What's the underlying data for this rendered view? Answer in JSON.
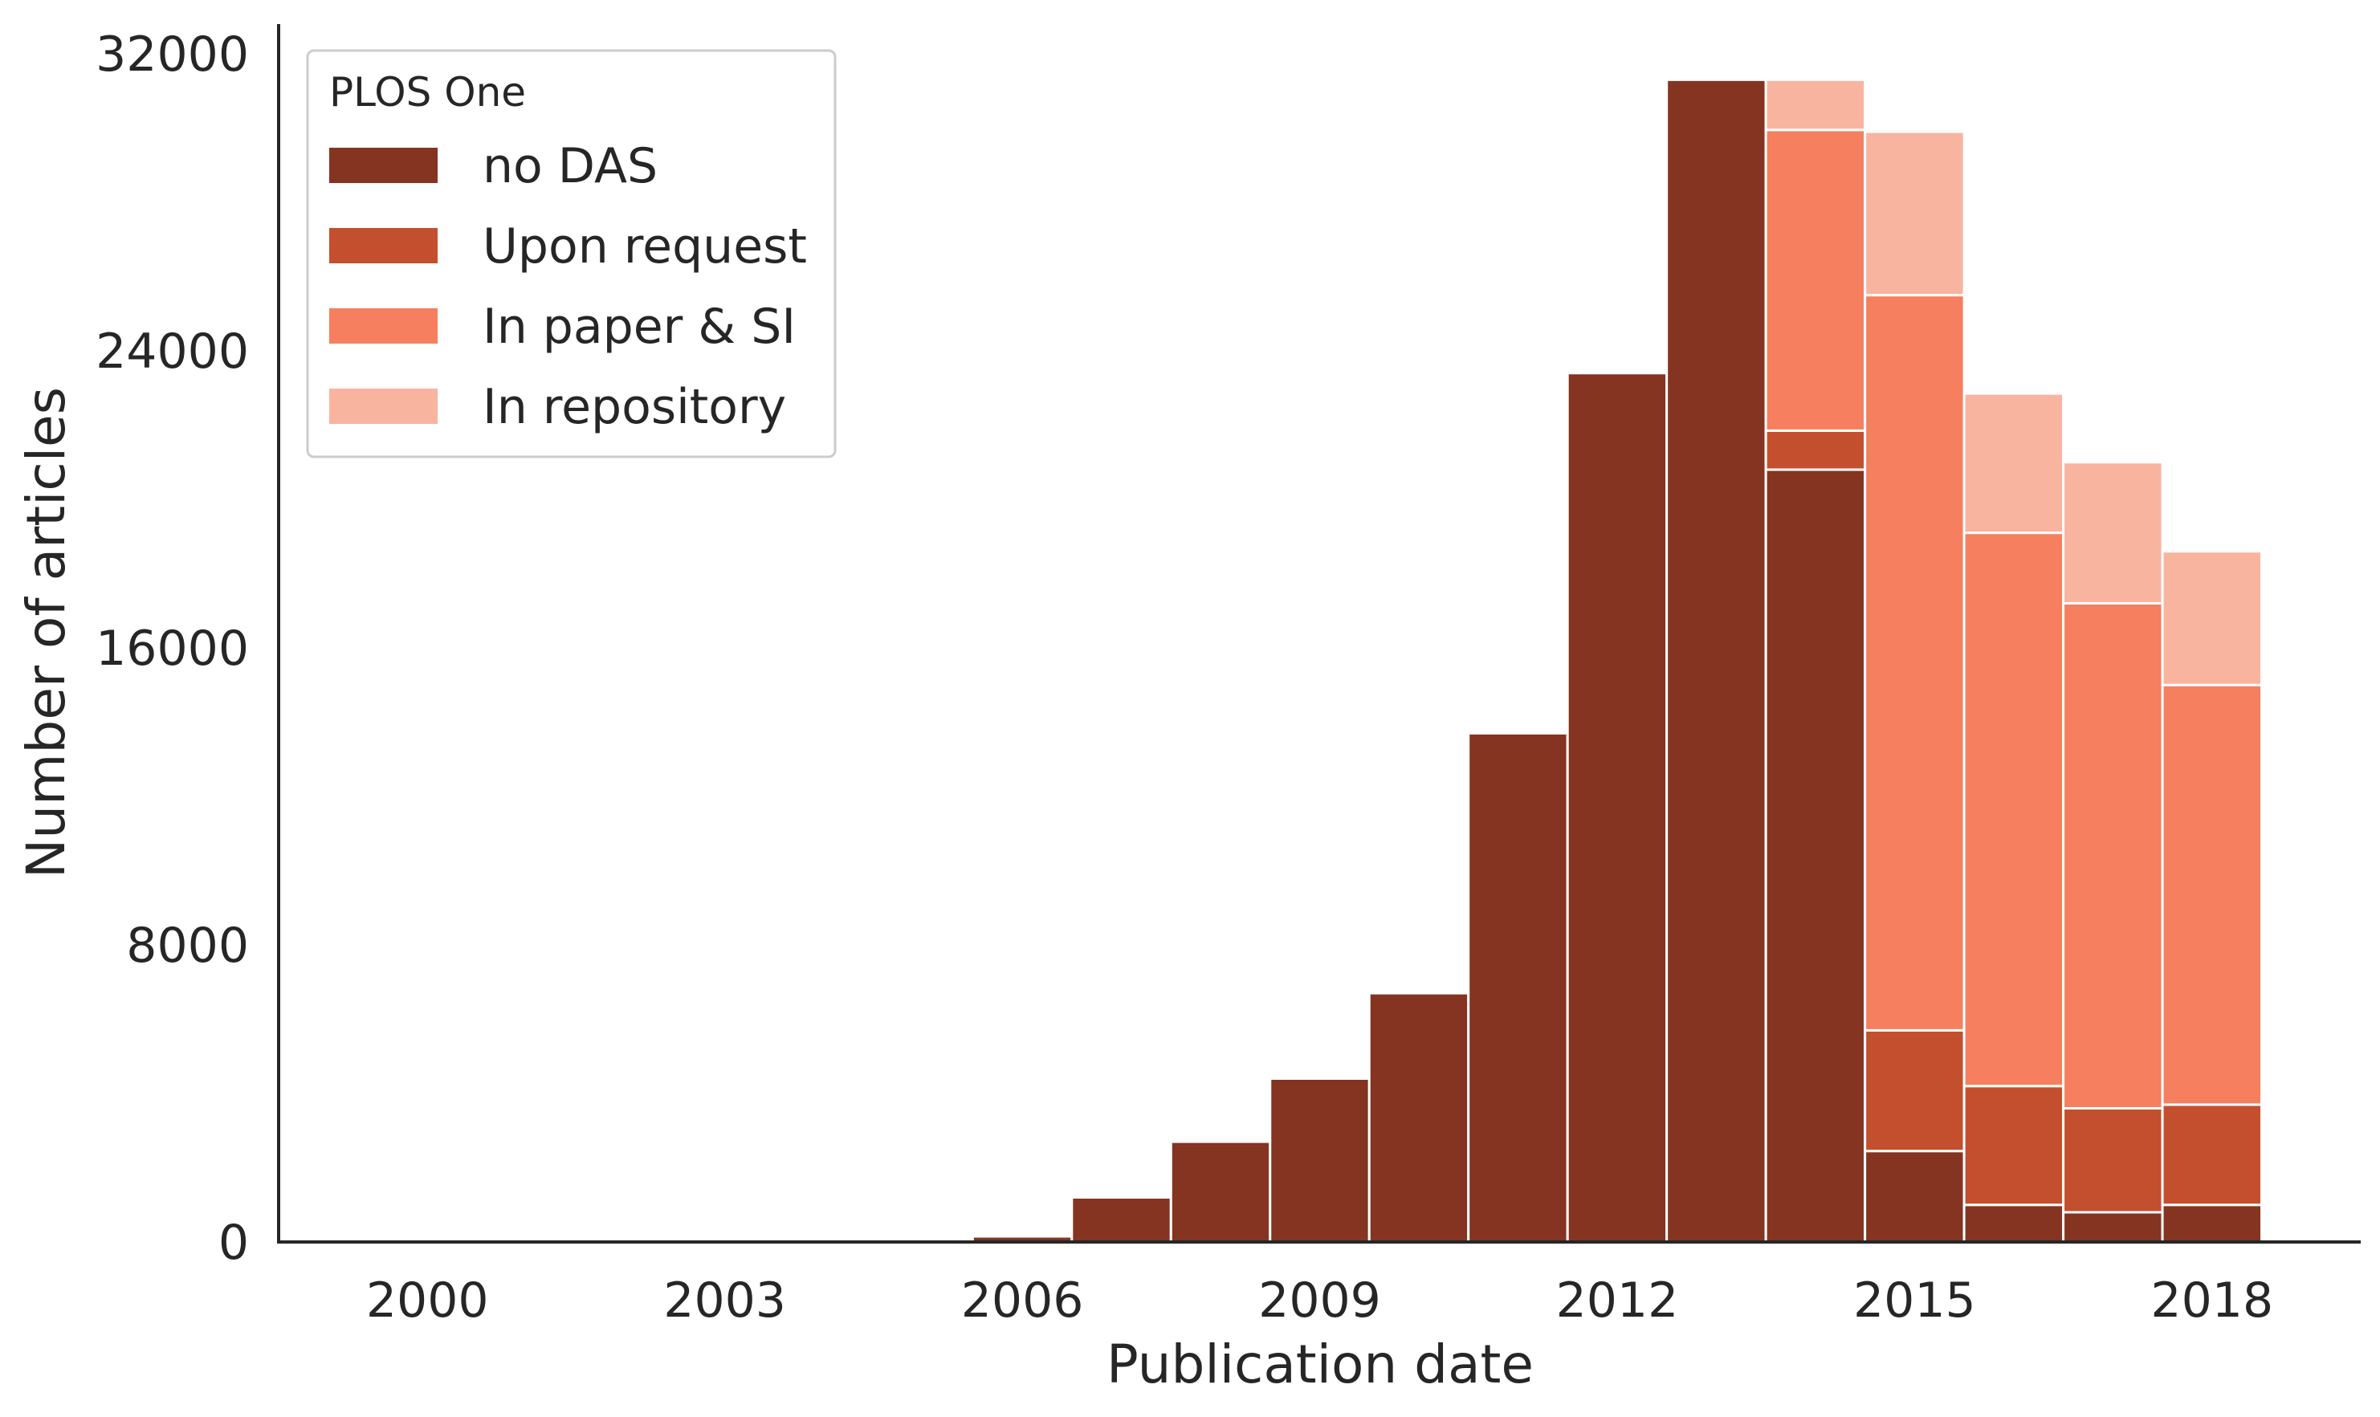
{
  "chart_data": {
    "type": "bar",
    "stacked": true,
    "xlabel": "Publication date",
    "ylabel": "Number of articles",
    "xlim": [
      1998.5,
      2019.5
    ],
    "ylim": [
      0,
      32800
    ],
    "x_ticks": [
      2000,
      2003,
      2006,
      2009,
      2012,
      2015,
      2018
    ],
    "y_ticks": [
      0,
      8000,
      16000,
      24000,
      32000
    ],
    "grid": false,
    "legend": {
      "title": "PLOS One",
      "position": "top-left"
    },
    "x": [
      2006,
      2007,
      2008,
      2009,
      2010,
      2011,
      2012,
      2013,
      2014,
      2015,
      2016,
      2017,
      2018
    ],
    "series": [
      {
        "name": "no DAS",
        "color": "#843421",
        "values": [
          150,
          1200,
          2700,
          4400,
          6700,
          13700,
          23400,
          31300,
          20800,
          2450,
          1000,
          800,
          1000
        ]
      },
      {
        "name": "Upon request",
        "color": "#c44f2e",
        "values": [
          0,
          0,
          0,
          0,
          0,
          0,
          0,
          0,
          1050,
          3250,
          3200,
          2800,
          2700
        ]
      },
      {
        "name": "In paper & SI",
        "color": "#f57f5e",
        "values": [
          0,
          0,
          0,
          0,
          0,
          0,
          0,
          0,
          8100,
          19800,
          14900,
          13600,
          11300
        ]
      },
      {
        "name": "In repository",
        "color": "#f9b4a0",
        "values": [
          0,
          0,
          0,
          0,
          0,
          0,
          0,
          0,
          1350,
          4400,
          3750,
          3800,
          3600
        ]
      }
    ]
  }
}
